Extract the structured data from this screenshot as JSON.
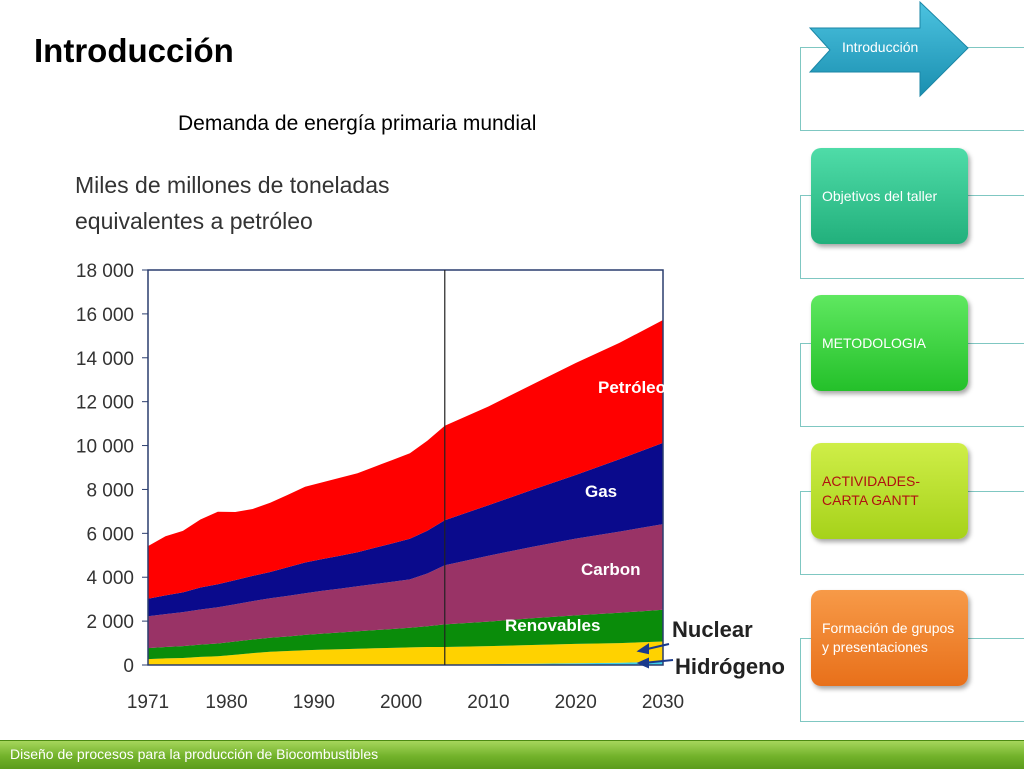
{
  "slide": {
    "title": "Introducción",
    "subtitle": "Demanda de energía primaria mundial",
    "footer": "Diseño de procesos para la producción de Biocombustibles"
  },
  "nav": {
    "items": [
      {
        "label": "Introducción",
        "color": "#2aa8c8",
        "shape": "arrow"
      },
      {
        "label": "Objetivos del taller",
        "color": "#27c28c"
      },
      {
        "label": "METODOLOGIA",
        "color": "#35d83c"
      },
      {
        "label": "ACTIVIDADES- CARTA GANTT",
        "color": "#b4dc1c",
        "text_color": "#b01010"
      },
      {
        "label": "Formación de grupos y presentaciones",
        "color": "#f07e1e"
      }
    ]
  },
  "chart_data": {
    "type": "area",
    "stacked": true,
    "title": "Miles de millones de toneladas equivalentes a petróleo",
    "title_lines": [
      "Miles de millones de toneladas",
      "equivalentes a petróleo"
    ],
    "ylim": [
      0,
      18000
    ],
    "yticks": [
      0,
      2000,
      4000,
      6000,
      8000,
      10000,
      12000,
      14000,
      16000,
      18000
    ],
    "ytick_labels": [
      "0",
      "2 000",
      "4 000",
      "6 000",
      "8 000",
      "10 000",
      "12 000",
      "14 000",
      "16 000",
      "18 000"
    ],
    "xlim": [
      1971,
      2030
    ],
    "xticks": [
      1971,
      1980,
      1990,
      2000,
      2010,
      2020,
      2030
    ],
    "divider_year": 2005,
    "x": [
      1971,
      1973,
      1975,
      1977,
      1979,
      1981,
      1983,
      1985,
      1987,
      1989,
      1991,
      1993,
      1995,
      1997,
      1999,
      2001,
      2003,
      2005,
      2010,
      2015,
      2020,
      2025,
      2030
    ],
    "series": [
      {
        "name": "Hidrógeno",
        "color": "#3fd0e8",
        "values": [
          20,
          20,
          20,
          20,
          20,
          20,
          20,
          20,
          20,
          20,
          20,
          20,
          20,
          20,
          20,
          20,
          20,
          20,
          40,
          60,
          80,
          100,
          150
        ]
      },
      {
        "name": "Nuclear",
        "color": "#ffd200",
        "values": [
          250,
          280,
          300,
          350,
          380,
          450,
          520,
          580,
          620,
          650,
          680,
          700,
          720,
          740,
          760,
          780,
          800,
          800,
          820,
          850,
          880,
          900,
          920
        ]
      },
      {
        "name": "Renovables",
        "color": "#0a8c0a",
        "values": [
          500,
          520,
          540,
          560,
          580,
          600,
          620,
          640,
          660,
          700,
          730,
          760,
          800,
          830,
          860,
          900,
          950,
          1030,
          1120,
          1220,
          1300,
          1380,
          1450
        ]
      },
      {
        "name": "Carbon",
        "color": "#993366",
        "values": [
          1450,
          1500,
          1550,
          1600,
          1650,
          1700,
          1750,
          1800,
          1850,
          1900,
          1950,
          2000,
          2050,
          2100,
          2150,
          2200,
          2400,
          2700,
          3000,
          3250,
          3500,
          3700,
          3900
        ]
      },
      {
        "name": "Gas",
        "color": "#0a0a8c",
        "values": [
          800,
          850,
          900,
          1000,
          1050,
          1100,
          1150,
          1200,
          1300,
          1400,
          1450,
          1500,
          1550,
          1650,
          1750,
          1850,
          1950,
          2050,
          2300,
          2600,
          2900,
          3300,
          3700
        ]
      },
      {
        "name": "Petróleo",
        "color": "#ff0000",
        "values": [
          2400,
          2700,
          2800,
          3100,
          3300,
          3100,
          3050,
          3150,
          3300,
          3450,
          3500,
          3550,
          3600,
          3700,
          3800,
          3900,
          4100,
          4300,
          4500,
          4800,
          5100,
          5300,
          5600
        ]
      }
    ],
    "labels": {
      "petroleo": "Petróleo",
      "gas": "Gas",
      "carbon": "Carbon",
      "renovables": "Renovables",
      "nuclear": "Nuclear",
      "hidrogeno": "Hidrógeno"
    }
  }
}
